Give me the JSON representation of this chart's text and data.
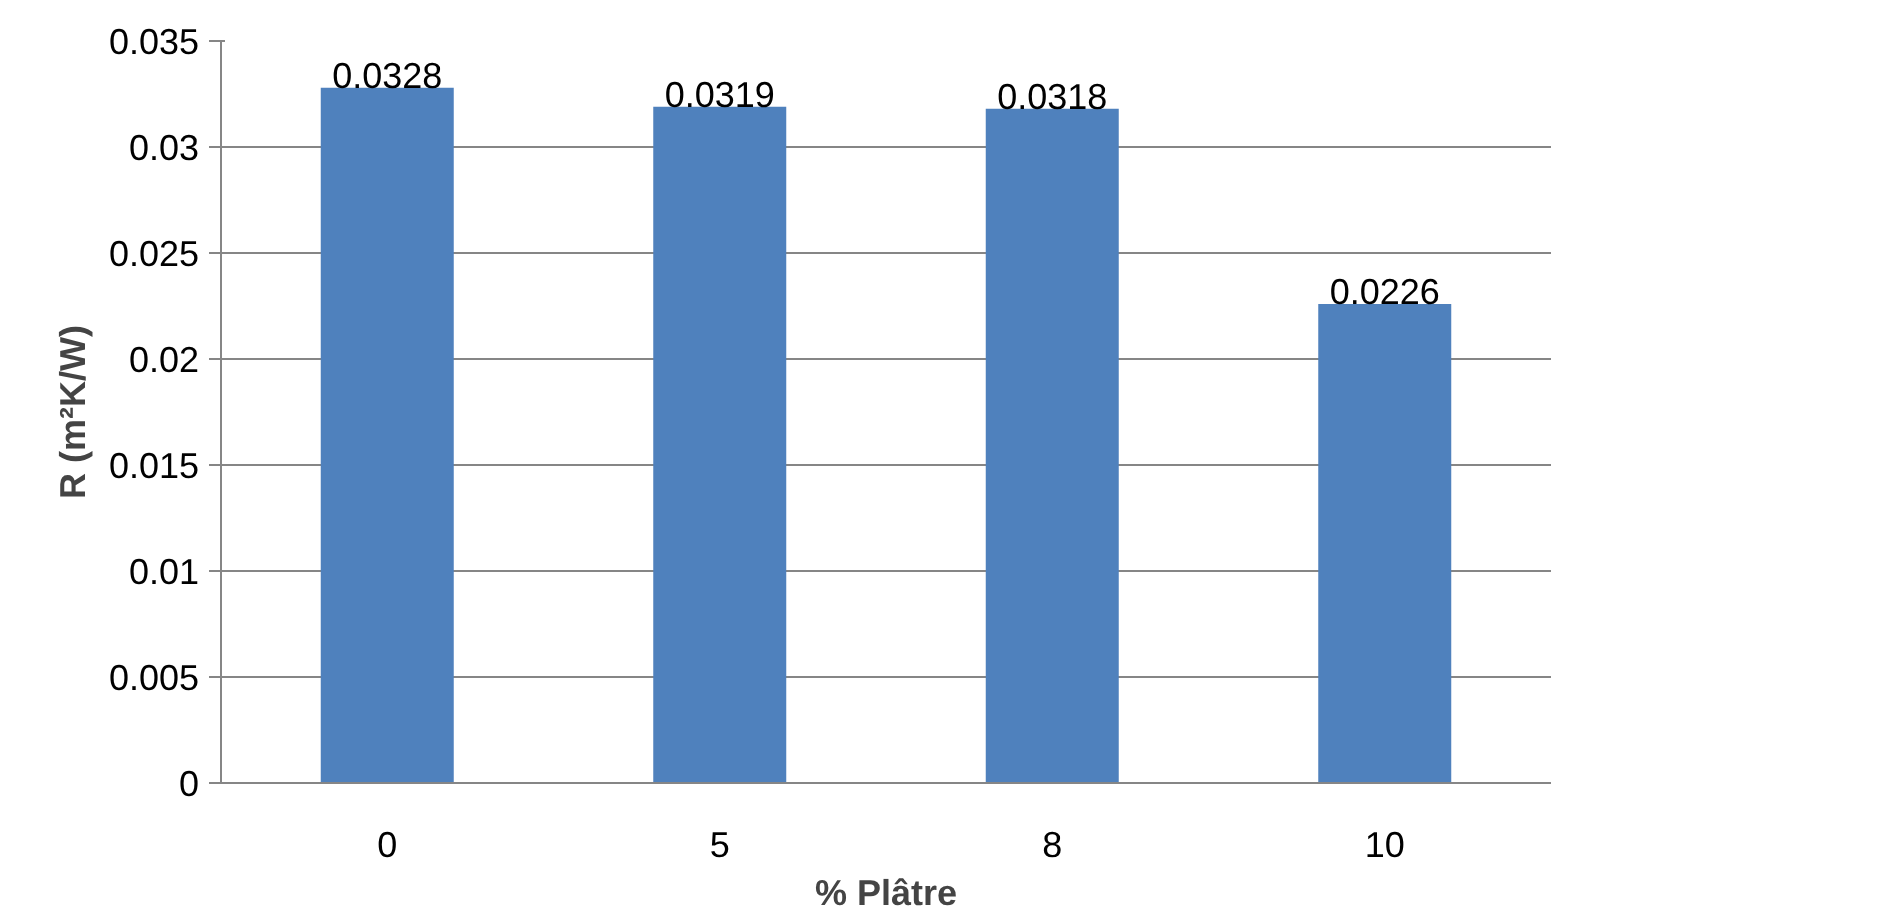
{
  "chart_data": {
    "type": "bar",
    "xlabel": "% Plâtre",
    "ylabel": "R (m²K/W)",
    "categories": [
      "0",
      "5",
      "8",
      "10"
    ],
    "values": [
      0.0328,
      0.0319,
      0.0318,
      0.0226
    ],
    "color": "#4f81bd",
    "ylim": [
      0,
      0.035
    ],
    "yticks": [
      0,
      0.005,
      0.01,
      0.015,
      0.02,
      0.025,
      0.03,
      0.035
    ],
    "grid": "y",
    "data_labels": true
  }
}
